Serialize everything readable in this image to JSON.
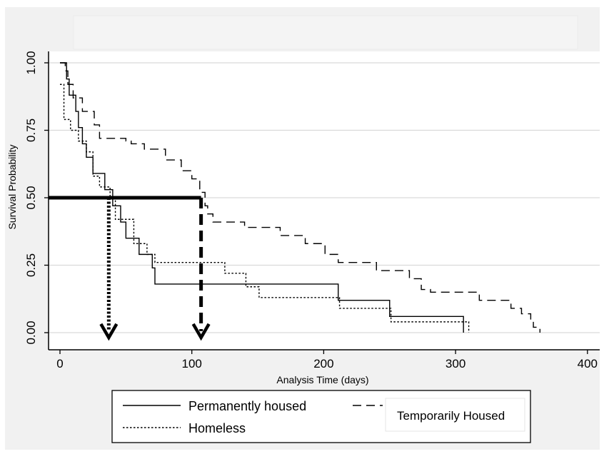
{
  "chart_data": {
    "type": "line",
    "title": "",
    "xlabel": "Analysis Time (days)",
    "ylabel": "Survival Probability",
    "xlim": [
      -5,
      400
    ],
    "ylim": [
      -0.03,
      1.04
    ],
    "x_ticks": [
      0,
      100,
      200,
      300,
      400
    ],
    "y_ticks": [
      0.0,
      0.25,
      0.5,
      0.75,
      1.0
    ],
    "x_tick_labels": [
      "0",
      "100",
      "200",
      "300",
      "400"
    ],
    "y_tick_labels": [
      "0.00",
      "0.25",
      "0.50",
      "0.75",
      "1.00"
    ],
    "grid": "horizontal",
    "legend_position": "bottom",
    "series": [
      {
        "name": "Permanently housed",
        "style": "solid",
        "color": "#000000",
        "steps": [
          [
            0,
            1.0
          ],
          [
            5,
            0.94
          ],
          [
            7,
            0.88
          ],
          [
            12,
            0.82
          ],
          [
            14,
            0.76
          ],
          [
            17,
            0.7
          ],
          [
            20,
            0.65
          ],
          [
            25,
            0.59
          ],
          [
            34,
            0.53
          ],
          [
            40,
            0.47
          ],
          [
            46,
            0.41
          ],
          [
            50,
            0.35
          ],
          [
            60,
            0.29
          ],
          [
            70,
            0.24
          ],
          [
            72,
            0.18
          ],
          [
            211,
            0.12
          ],
          [
            250,
            0.06
          ],
          [
            306,
            0.0
          ]
        ]
      },
      {
        "name": "Homeless",
        "style": "dotted",
        "color": "#000000",
        "steps": [
          [
            0,
            0.92
          ],
          [
            3,
            0.79
          ],
          [
            8,
            0.75
          ],
          [
            14,
            0.71
          ],
          [
            20,
            0.67
          ],
          [
            25,
            0.58
          ],
          [
            30,
            0.54
          ],
          [
            38,
            0.5
          ],
          [
            42,
            0.42
          ],
          [
            56,
            0.33
          ],
          [
            66,
            0.29
          ],
          [
            72,
            0.26
          ],
          [
            125,
            0.22
          ],
          [
            141,
            0.17
          ],
          [
            151,
            0.13
          ],
          [
            212,
            0.09
          ],
          [
            251,
            0.04
          ],
          [
            310,
            0.0
          ]
        ]
      },
      {
        "name": "Temporarily Housed",
        "style": "dashed",
        "color": "#000000",
        "steps": [
          [
            0,
            1.0
          ],
          [
            4,
            0.97
          ],
          [
            6,
            0.92
          ],
          [
            10,
            0.87
          ],
          [
            17,
            0.82
          ],
          [
            26,
            0.77
          ],
          [
            30,
            0.72
          ],
          [
            50,
            0.71
          ],
          [
            54,
            0.7
          ],
          [
            64,
            0.68
          ],
          [
            80,
            0.64
          ],
          [
            92,
            0.6
          ],
          [
            100,
            0.57
          ],
          [
            106,
            0.52
          ],
          [
            110,
            0.47
          ],
          [
            112,
            0.44
          ],
          [
            116,
            0.41
          ],
          [
            140,
            0.39
          ],
          [
            167,
            0.36
          ],
          [
            186,
            0.33
          ],
          [
            201,
            0.29
          ],
          [
            211,
            0.26
          ],
          [
            240,
            0.23
          ],
          [
            265,
            0.2
          ],
          [
            274,
            0.16
          ],
          [
            281,
            0.15
          ],
          [
            318,
            0.12
          ],
          [
            342,
            0.09
          ],
          [
            350,
            0.07
          ],
          [
            357,
            0.04
          ],
          [
            359,
            0.02
          ],
          [
            364,
            0.0
          ]
        ]
      }
    ],
    "median_annotations": [
      {
        "x": 37,
        "y": 0.5,
        "style": "dotted"
      },
      {
        "x": 107,
        "y": 0.5,
        "style": "dashed"
      }
    ]
  },
  "legend": {
    "items": [
      {
        "label": "Permanently housed",
        "style": "solid"
      },
      {
        "label": "Homeless",
        "style": "dotted"
      },
      {
        "label": "",
        "style": "dashed"
      }
    ],
    "overlay_label": "Temporarily Housed"
  }
}
